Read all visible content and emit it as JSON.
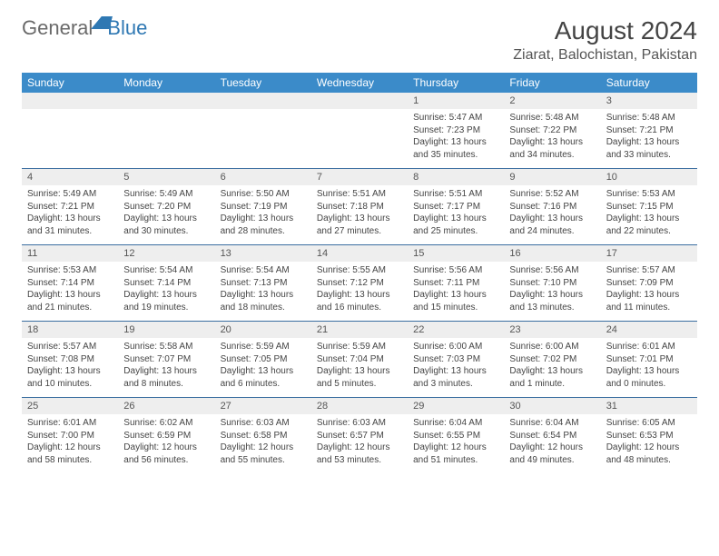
{
  "logo": {
    "word1": "General",
    "word2": "Blue"
  },
  "title": "August 2024",
  "location": "Ziarat, Balochistan, Pakistan",
  "colors": {
    "header_bg": "#3b8bc9",
    "header_text": "#ffffff",
    "daynum_bg": "#eeeeee",
    "separator": "#3b6ea0",
    "logo_gray": "#6a6a6a",
    "logo_blue": "#2f78b3"
  },
  "dow": [
    "Sunday",
    "Monday",
    "Tuesday",
    "Wednesday",
    "Thursday",
    "Friday",
    "Saturday"
  ],
  "weeks": [
    [
      null,
      null,
      null,
      null,
      {
        "n": "1",
        "sr": "Sunrise: 5:47 AM",
        "ss": "Sunset: 7:23 PM",
        "d1": "Daylight: 13 hours",
        "d2": "and 35 minutes."
      },
      {
        "n": "2",
        "sr": "Sunrise: 5:48 AM",
        "ss": "Sunset: 7:22 PM",
        "d1": "Daylight: 13 hours",
        "d2": "and 34 minutes."
      },
      {
        "n": "3",
        "sr": "Sunrise: 5:48 AM",
        "ss": "Sunset: 7:21 PM",
        "d1": "Daylight: 13 hours",
        "d2": "and 33 minutes."
      }
    ],
    [
      {
        "n": "4",
        "sr": "Sunrise: 5:49 AM",
        "ss": "Sunset: 7:21 PM",
        "d1": "Daylight: 13 hours",
        "d2": "and 31 minutes."
      },
      {
        "n": "5",
        "sr": "Sunrise: 5:49 AM",
        "ss": "Sunset: 7:20 PM",
        "d1": "Daylight: 13 hours",
        "d2": "and 30 minutes."
      },
      {
        "n": "6",
        "sr": "Sunrise: 5:50 AM",
        "ss": "Sunset: 7:19 PM",
        "d1": "Daylight: 13 hours",
        "d2": "and 28 minutes."
      },
      {
        "n": "7",
        "sr": "Sunrise: 5:51 AM",
        "ss": "Sunset: 7:18 PM",
        "d1": "Daylight: 13 hours",
        "d2": "and 27 minutes."
      },
      {
        "n": "8",
        "sr": "Sunrise: 5:51 AM",
        "ss": "Sunset: 7:17 PM",
        "d1": "Daylight: 13 hours",
        "d2": "and 25 minutes."
      },
      {
        "n": "9",
        "sr": "Sunrise: 5:52 AM",
        "ss": "Sunset: 7:16 PM",
        "d1": "Daylight: 13 hours",
        "d2": "and 24 minutes."
      },
      {
        "n": "10",
        "sr": "Sunrise: 5:53 AM",
        "ss": "Sunset: 7:15 PM",
        "d1": "Daylight: 13 hours",
        "d2": "and 22 minutes."
      }
    ],
    [
      {
        "n": "11",
        "sr": "Sunrise: 5:53 AM",
        "ss": "Sunset: 7:14 PM",
        "d1": "Daylight: 13 hours",
        "d2": "and 21 minutes."
      },
      {
        "n": "12",
        "sr": "Sunrise: 5:54 AM",
        "ss": "Sunset: 7:14 PM",
        "d1": "Daylight: 13 hours",
        "d2": "and 19 minutes."
      },
      {
        "n": "13",
        "sr": "Sunrise: 5:54 AM",
        "ss": "Sunset: 7:13 PM",
        "d1": "Daylight: 13 hours",
        "d2": "and 18 minutes."
      },
      {
        "n": "14",
        "sr": "Sunrise: 5:55 AM",
        "ss": "Sunset: 7:12 PM",
        "d1": "Daylight: 13 hours",
        "d2": "and 16 minutes."
      },
      {
        "n": "15",
        "sr": "Sunrise: 5:56 AM",
        "ss": "Sunset: 7:11 PM",
        "d1": "Daylight: 13 hours",
        "d2": "and 15 minutes."
      },
      {
        "n": "16",
        "sr": "Sunrise: 5:56 AM",
        "ss": "Sunset: 7:10 PM",
        "d1": "Daylight: 13 hours",
        "d2": "and 13 minutes."
      },
      {
        "n": "17",
        "sr": "Sunrise: 5:57 AM",
        "ss": "Sunset: 7:09 PM",
        "d1": "Daylight: 13 hours",
        "d2": "and 11 minutes."
      }
    ],
    [
      {
        "n": "18",
        "sr": "Sunrise: 5:57 AM",
        "ss": "Sunset: 7:08 PM",
        "d1": "Daylight: 13 hours",
        "d2": "and 10 minutes."
      },
      {
        "n": "19",
        "sr": "Sunrise: 5:58 AM",
        "ss": "Sunset: 7:07 PM",
        "d1": "Daylight: 13 hours",
        "d2": "and 8 minutes."
      },
      {
        "n": "20",
        "sr": "Sunrise: 5:59 AM",
        "ss": "Sunset: 7:05 PM",
        "d1": "Daylight: 13 hours",
        "d2": "and 6 minutes."
      },
      {
        "n": "21",
        "sr": "Sunrise: 5:59 AM",
        "ss": "Sunset: 7:04 PM",
        "d1": "Daylight: 13 hours",
        "d2": "and 5 minutes."
      },
      {
        "n": "22",
        "sr": "Sunrise: 6:00 AM",
        "ss": "Sunset: 7:03 PM",
        "d1": "Daylight: 13 hours",
        "d2": "and 3 minutes."
      },
      {
        "n": "23",
        "sr": "Sunrise: 6:00 AM",
        "ss": "Sunset: 7:02 PM",
        "d1": "Daylight: 13 hours",
        "d2": "and 1 minute."
      },
      {
        "n": "24",
        "sr": "Sunrise: 6:01 AM",
        "ss": "Sunset: 7:01 PM",
        "d1": "Daylight: 13 hours",
        "d2": "and 0 minutes."
      }
    ],
    [
      {
        "n": "25",
        "sr": "Sunrise: 6:01 AM",
        "ss": "Sunset: 7:00 PM",
        "d1": "Daylight: 12 hours",
        "d2": "and 58 minutes."
      },
      {
        "n": "26",
        "sr": "Sunrise: 6:02 AM",
        "ss": "Sunset: 6:59 PM",
        "d1": "Daylight: 12 hours",
        "d2": "and 56 minutes."
      },
      {
        "n": "27",
        "sr": "Sunrise: 6:03 AM",
        "ss": "Sunset: 6:58 PM",
        "d1": "Daylight: 12 hours",
        "d2": "and 55 minutes."
      },
      {
        "n": "28",
        "sr": "Sunrise: 6:03 AM",
        "ss": "Sunset: 6:57 PM",
        "d1": "Daylight: 12 hours",
        "d2": "and 53 minutes."
      },
      {
        "n": "29",
        "sr": "Sunrise: 6:04 AM",
        "ss": "Sunset: 6:55 PM",
        "d1": "Daylight: 12 hours",
        "d2": "and 51 minutes."
      },
      {
        "n": "30",
        "sr": "Sunrise: 6:04 AM",
        "ss": "Sunset: 6:54 PM",
        "d1": "Daylight: 12 hours",
        "d2": "and 49 minutes."
      },
      {
        "n": "31",
        "sr": "Sunrise: 6:05 AM",
        "ss": "Sunset: 6:53 PM",
        "d1": "Daylight: 12 hours",
        "d2": "and 48 minutes."
      }
    ]
  ]
}
